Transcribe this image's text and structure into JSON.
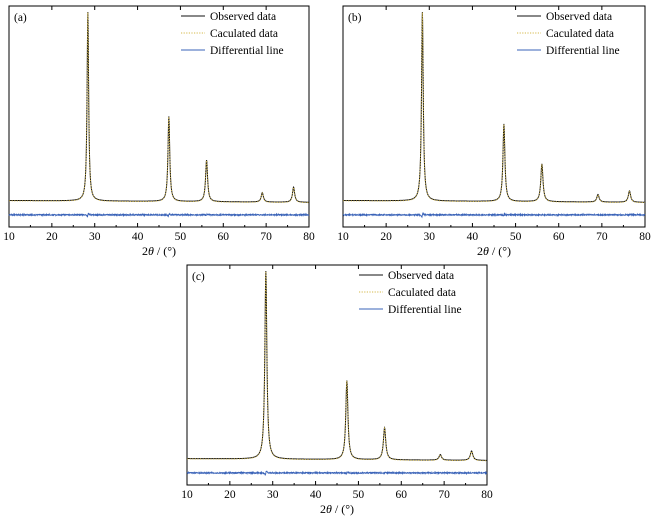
{
  "chart_data": [
    {
      "type": "line",
      "panel_label": "(a)",
      "xlabel": "2θ / (°)",
      "xlim": [
        10,
        80
      ],
      "xticks": [
        10,
        20,
        30,
        40,
        50,
        60,
        70,
        80
      ],
      "ylabel": "",
      "y_ticks_shown": false,
      "legend_position": "top-right",
      "baseline_intensity": 0.04,
      "peaks": [
        {
          "x": 28.4,
          "intensity": 1.0,
          "width": 0.22
        },
        {
          "x": 47.3,
          "intensity": 0.45,
          "width": 0.25
        },
        {
          "x": 56.1,
          "intensity": 0.22,
          "width": 0.28
        },
        {
          "x": 69.1,
          "intensity": 0.05,
          "width": 0.3
        },
        {
          "x": 76.4,
          "intensity": 0.08,
          "width": 0.3
        }
      ],
      "series": [
        {
          "name": "Observed data",
          "color": "#111111",
          "style": "solid"
        },
        {
          "name": "Caculated data",
          "color": "#d4b84a",
          "style": "dotted"
        },
        {
          "name": "Differential line",
          "color": "#3a63b8",
          "style": "solid"
        }
      ]
    },
    {
      "type": "line",
      "panel_label": "(b)",
      "xlabel": "2θ / (°)",
      "xlim": [
        10,
        80
      ],
      "xticks": [
        10,
        20,
        30,
        40,
        50,
        60,
        70,
        80
      ],
      "ylabel": "",
      "y_ticks_shown": false,
      "legend_position": "top-right",
      "baseline_intensity": 0.04,
      "peaks": [
        {
          "x": 28.4,
          "intensity": 1.0,
          "width": 0.24
        },
        {
          "x": 47.3,
          "intensity": 0.41,
          "width": 0.27
        },
        {
          "x": 56.1,
          "intensity": 0.2,
          "width": 0.3
        },
        {
          "x": 69.1,
          "intensity": 0.04,
          "width": 0.32
        },
        {
          "x": 76.4,
          "intensity": 0.06,
          "width": 0.32
        }
      ],
      "series": [
        {
          "name": "Observed data",
          "color": "#111111",
          "style": "solid"
        },
        {
          "name": "Caculated data",
          "color": "#d4b84a",
          "style": "dotted"
        },
        {
          "name": "Differential line",
          "color": "#3a63b8",
          "style": "solid"
        }
      ]
    },
    {
      "type": "line",
      "panel_label": "(c)",
      "xlabel": "2θ / (°)",
      "xlim": [
        10,
        80
      ],
      "xticks": [
        10,
        20,
        30,
        40,
        50,
        60,
        70,
        80
      ],
      "ylabel": "",
      "y_ticks_shown": false,
      "legend_position": "top-right",
      "baseline_intensity": 0.04,
      "peaks": [
        {
          "x": 28.4,
          "intensity": 1.0,
          "width": 0.28
        },
        {
          "x": 47.3,
          "intensity": 0.42,
          "width": 0.3
        },
        {
          "x": 56.1,
          "intensity": 0.17,
          "width": 0.33
        },
        {
          "x": 69.1,
          "intensity": 0.03,
          "width": 0.35
        },
        {
          "x": 76.4,
          "intensity": 0.05,
          "width": 0.35
        }
      ],
      "series": [
        {
          "name": "Observed data",
          "color": "#111111",
          "style": "solid"
        },
        {
          "name": "Caculated data",
          "color": "#d4b84a",
          "style": "dotted"
        },
        {
          "name": "Differential line",
          "color": "#3a63b8",
          "style": "solid"
        }
      ]
    }
  ]
}
